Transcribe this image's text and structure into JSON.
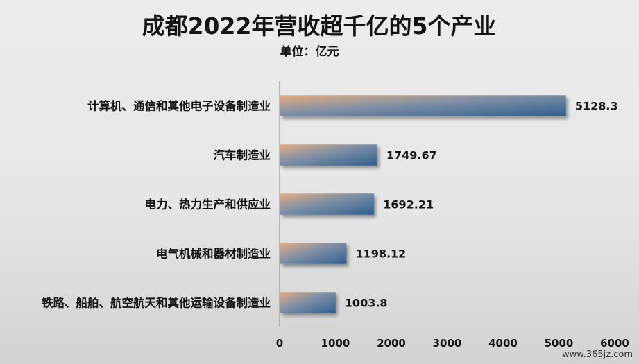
{
  "chart_data": {
    "type": "bar",
    "orientation": "horizontal",
    "title": "成都2022年营收超千亿的5个产业",
    "subtitle": "单位：亿元",
    "categories": [
      "计算机、通信和其他电子设备制造业",
      "汽车制造业",
      "电力、热力生产和供应业",
      "电气机械和器材制造业",
      "铁路、船舶、航空航天和其他运输设备制造业"
    ],
    "values": [
      5128.3,
      1749.67,
      1692.21,
      1198.12,
      1003.8
    ],
    "value_labels": [
      "5128.3",
      "1749.67",
      "1692.21",
      "1198.12",
      "1003.8"
    ],
    "xlim": [
      0,
      6000
    ],
    "xticks": [
      "0",
      "1000",
      "2000",
      "3000",
      "4000",
      "5000",
      "6000"
    ],
    "xtick_values": [
      0,
      1000,
      2000,
      3000,
      4000,
      5000,
      6000
    ],
    "grid": false,
    "legend": "none",
    "colors": {
      "bar_start": "#e2ad82",
      "bar_end": "#2f5e8e",
      "axis": "#8c8c8c"
    }
  },
  "watermark": "www.365jz.com"
}
